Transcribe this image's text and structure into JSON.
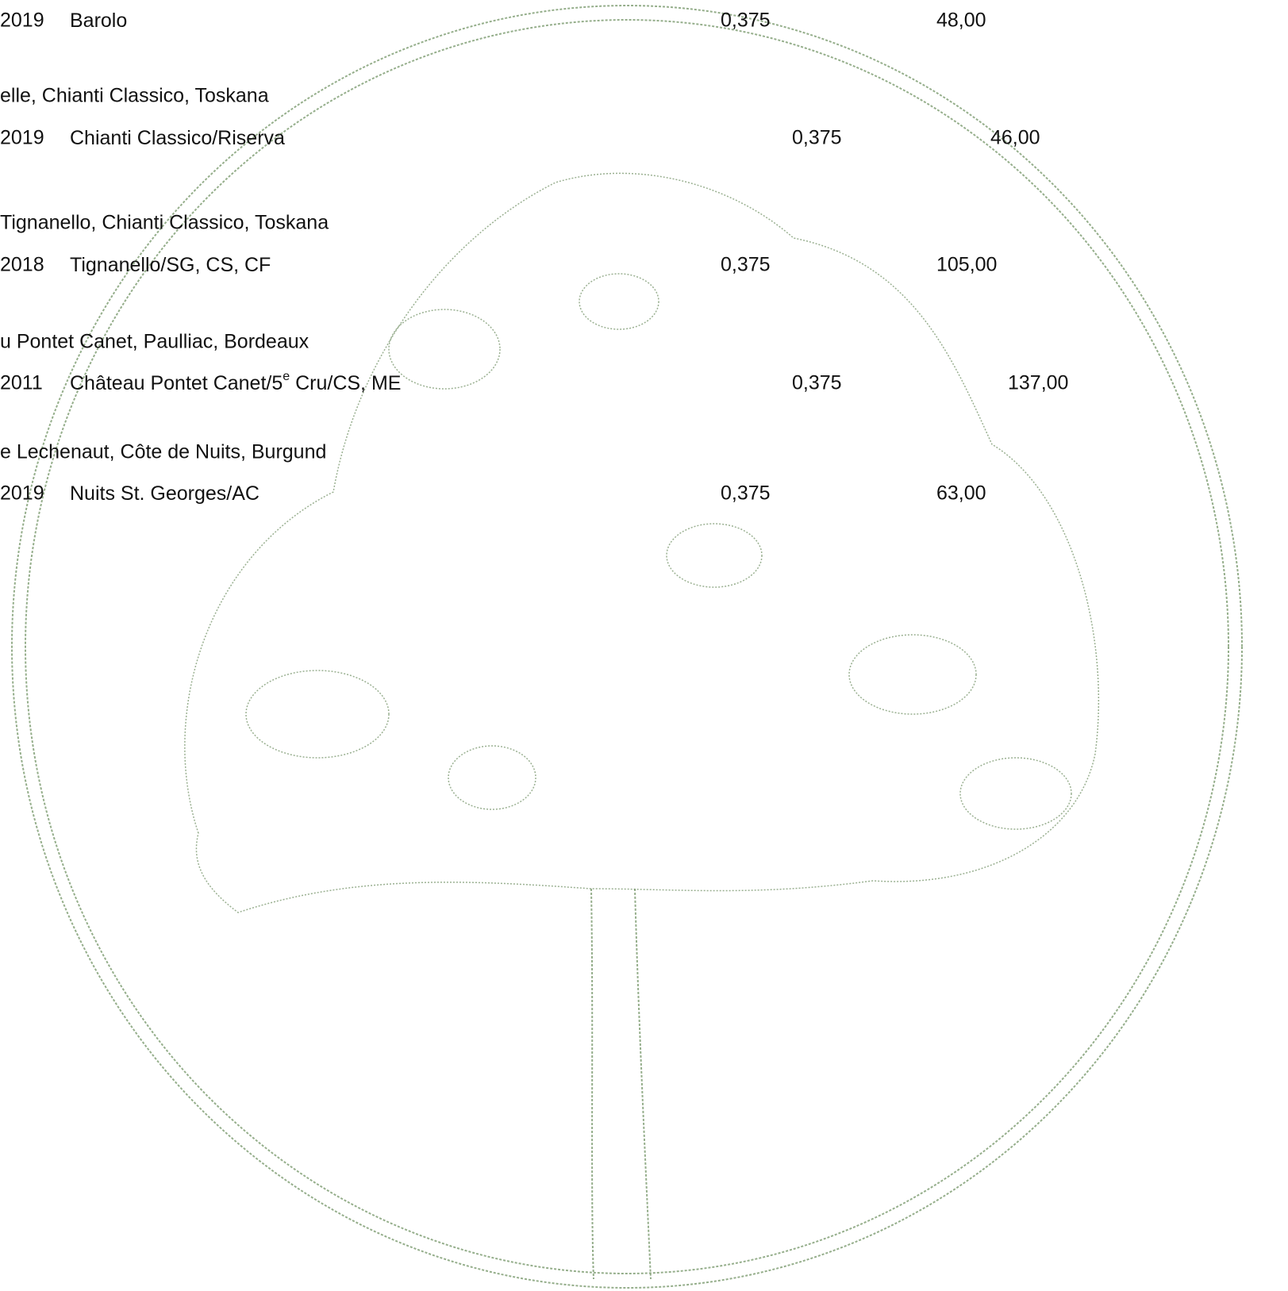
{
  "entries": [
    {
      "vintage": "2019",
      "name": "Barolo",
      "volume": "0,375",
      "price": "48,00"
    },
    {
      "producer": "elle, Chianti Classico, Toskana",
      "vintage": "2019",
      "name": "Chianti Classico/Riserva",
      "volume": "0,375",
      "price": "46,00"
    },
    {
      "producer": "Tignanello, Chianti Classico, Toskana",
      "vintage": "2018",
      "name": "Tignanello/SG, CS, CF",
      "volume": "0,375",
      "price": "105,00"
    },
    {
      "producer": "u Pontet Canet, Paulliac, Bordeaux",
      "vintage": "2011",
      "name": "Château Pontet Canet/5",
      "name_sup": "e",
      "name_rest": " Cru/CS, ME",
      "volume": "0,375",
      "price": "137,00"
    },
    {
      "producer": "e Lechenaut, Côte de Nuits, Burgund",
      "vintage": "2019",
      "name": "Nuits St. Georges/AC",
      "volume": "0,375",
      "price": "63,00"
    }
  ]
}
